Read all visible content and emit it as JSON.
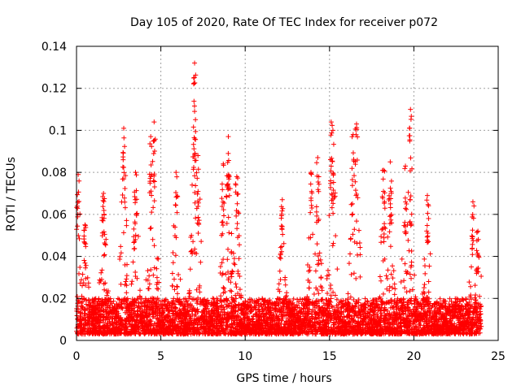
{
  "chart_data": {
    "type": "scatter",
    "title": "Day 105 of 2020, Rate Of TEC Index for receiver p072",
    "xlabel": "GPS time / hours",
    "ylabel": "ROTI / TECUs",
    "xlim": [
      0,
      25
    ],
    "ylim": [
      0,
      0.14
    ],
    "x_ticks": [
      0,
      5,
      10,
      15,
      20,
      25
    ],
    "x_tick_labels": [
      "0",
      "5",
      "10",
      "15",
      "20",
      "25"
    ],
    "y_ticks": [
      0,
      0.02,
      0.04,
      0.06,
      0.08,
      0.1,
      0.12,
      0.14
    ],
    "y_tick_labels": [
      "0",
      "0.02",
      "0.04",
      "0.06",
      "0.08",
      "0.1",
      "0.12",
      "0.14"
    ],
    "grid": true,
    "marker": "plus",
    "series_color": "#ff0000",
    "x_range_of_data": [
      0,
      24
    ],
    "baseline_band": [
      0.003,
      0.02
    ],
    "notable_peaks": [
      {
        "x": 0.1,
        "y": 0.079
      },
      {
        "x": 0.5,
        "y": 0.055
      },
      {
        "x": 1.6,
        "y": 0.07
      },
      {
        "x": 2.8,
        "y": 0.101
      },
      {
        "x": 3.5,
        "y": 0.08
      },
      {
        "x": 4.4,
        "y": 0.097
      },
      {
        "x": 4.6,
        "y": 0.104
      },
      {
        "x": 5.9,
        "y": 0.08
      },
      {
        "x": 7.0,
        "y": 0.132
      },
      {
        "x": 7.0,
        "y": 0.109
      },
      {
        "x": 7.2,
        "y": 0.088
      },
      {
        "x": 8.7,
        "y": 0.084
      },
      {
        "x": 9.0,
        "y": 0.097
      },
      {
        "x": 9.5,
        "y": 0.078
      },
      {
        "x": 12.2,
        "y": 0.067
      },
      {
        "x": 13.9,
        "y": 0.08
      },
      {
        "x": 14.3,
        "y": 0.087
      },
      {
        "x": 15.1,
        "y": 0.104
      },
      {
        "x": 15.2,
        "y": 0.1
      },
      {
        "x": 16.4,
        "y": 0.098
      },
      {
        "x": 16.6,
        "y": 0.103
      },
      {
        "x": 18.2,
        "y": 0.081
      },
      {
        "x": 18.6,
        "y": 0.085
      },
      {
        "x": 19.5,
        "y": 0.083
      },
      {
        "x": 19.8,
        "y": 0.11
      },
      {
        "x": 20.8,
        "y": 0.069
      },
      {
        "x": 23.5,
        "y": 0.066
      },
      {
        "x": 23.8,
        "y": 0.052
      }
    ]
  }
}
